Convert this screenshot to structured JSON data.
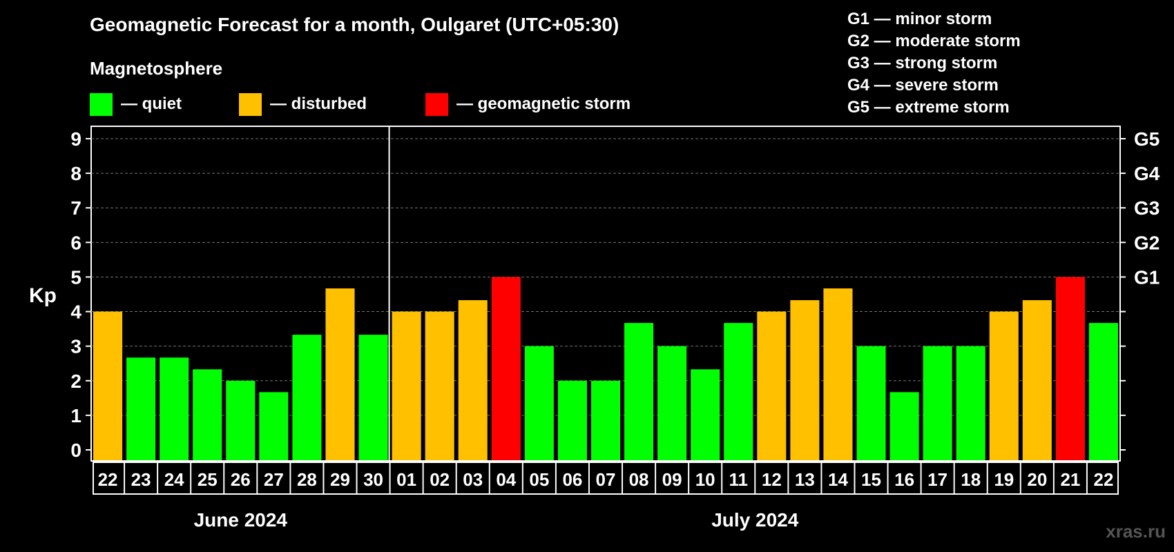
{
  "title": "Geomagnetic Forecast for a month, Oulgaret (UTC+05:30)",
  "subtitle": "Magnetosphere",
  "legend": [
    {
      "label": "— quiet",
      "color": "#00ff00"
    },
    {
      "label": "— disturbed",
      "color": "#ffc000"
    },
    {
      "label": "— geomagnetic storm",
      "color": "#ff0000"
    }
  ],
  "storm_levels": [
    "G1 — minor storm",
    "G2 — moderate storm",
    "G3 — strong storm",
    "G4 — severe storm",
    "G5 — extreme storm"
  ],
  "watermark": "xras.ru",
  "chart_data": {
    "type": "bar",
    "ylabel": "Kp",
    "ylim": [
      0,
      9
    ],
    "yticks": [
      "0",
      "1",
      "2",
      "3",
      "4",
      "5",
      "6",
      "7",
      "8",
      "9"
    ],
    "right_axis_labels": [
      {
        "value": 5,
        "label": "G1"
      },
      {
        "value": 6,
        "label": "G2"
      },
      {
        "value": 7,
        "label": "G3"
      },
      {
        "value": 8,
        "label": "G4"
      },
      {
        "value": 9,
        "label": "G5"
      }
    ],
    "grid": "horizontal dashed",
    "categories": [
      "22",
      "23",
      "24",
      "25",
      "26",
      "27",
      "28",
      "29",
      "30",
      "01",
      "02",
      "03",
      "04",
      "05",
      "06",
      "07",
      "08",
      "09",
      "10",
      "11",
      "12",
      "13",
      "14",
      "15",
      "16",
      "17",
      "18",
      "19",
      "20",
      "21",
      "22"
    ],
    "values": [
      4,
      2.67,
      2.67,
      2.33,
      2,
      1.67,
      3.33,
      4.67,
      3.33,
      4,
      4,
      4.33,
      5,
      3,
      2,
      2,
      3.67,
      3,
      2.33,
      3.67,
      4,
      4.33,
      4.67,
      3,
      1.67,
      3,
      3,
      4,
      4.33,
      5,
      3.67
    ],
    "bar_status": [
      "disturbed",
      "quiet",
      "quiet",
      "quiet",
      "quiet",
      "quiet",
      "quiet",
      "disturbed",
      "quiet",
      "disturbed",
      "disturbed",
      "disturbed",
      "storm",
      "quiet",
      "quiet",
      "quiet",
      "quiet",
      "quiet",
      "quiet",
      "quiet",
      "disturbed",
      "disturbed",
      "disturbed",
      "quiet",
      "quiet",
      "quiet",
      "quiet",
      "disturbed",
      "disturbed",
      "storm",
      "quiet"
    ],
    "status_colors": {
      "quiet": "#00ff00",
      "disturbed": "#ffc000",
      "storm": "#ff0000"
    },
    "months": [
      {
        "label": "June 2024",
        "first_index": 0,
        "last_index": 8
      },
      {
        "label": "July 2024",
        "first_index": 9,
        "last_index": 30
      }
    ]
  }
}
